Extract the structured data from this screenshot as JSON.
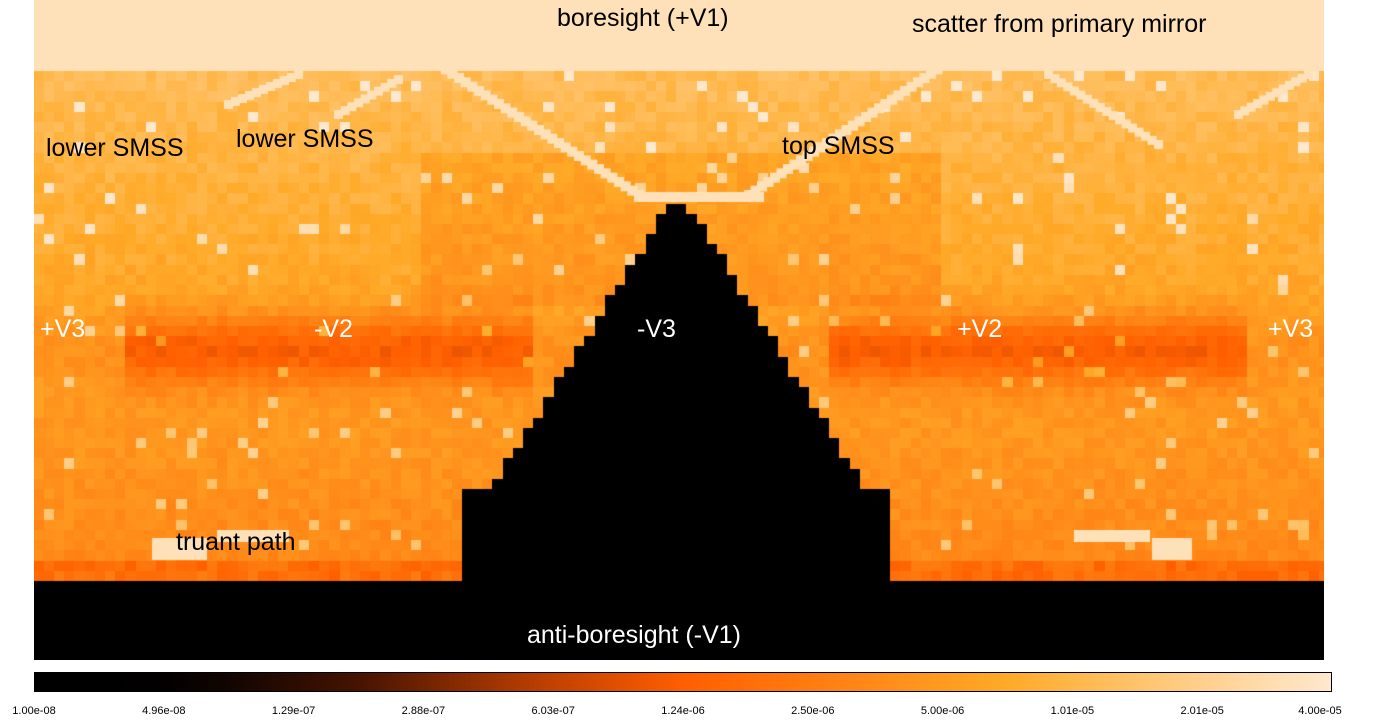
{
  "chart_data": {
    "type": "heatmap",
    "title": "",
    "xlabel": "",
    "ylabel": "",
    "scale": "log",
    "colormap": "afmhot",
    "colorbar": {
      "vmin": 1e-08,
      "vmax": 4e-05,
      "orientation": "horizontal",
      "tick_labels": [
        "1.00e-08",
        "4.96e-08",
        "1.29e-07",
        "2.88e-07",
        "6.03e-07",
        "1.24e-06",
        "2.50e-06",
        "5.00e-06",
        "1.01e-05",
        "2.01e-05",
        "4.00e-05"
      ]
    },
    "annotations": [
      {
        "key": "boresight",
        "text": "boresight (+V1)",
        "color": "#000000"
      },
      {
        "key": "scatter",
        "text": "scatter from primary mirror",
        "color": "#000000"
      },
      {
        "key": "lower_smss_1",
        "text": "lower SMSS",
        "color": "#000000"
      },
      {
        "key": "lower_smss_2",
        "text": "lower SMSS",
        "color": "#000000"
      },
      {
        "key": "top_smss",
        "text": "top SMSS",
        "color": "#000000"
      },
      {
        "key": "pv3_left",
        "text": "+V3",
        "color": "#ffffff"
      },
      {
        "key": "mv2",
        "text": "-V2",
        "color": "#ffffff"
      },
      {
        "key": "mv3",
        "text": "-V3",
        "color": "#ffffff"
      },
      {
        "key": "pv2",
        "text": "+V2",
        "color": "#ffffff"
      },
      {
        "key": "pv3_right",
        "text": "+V3",
        "color": "#ffffff"
      },
      {
        "key": "truant",
        "text": "truant path",
        "color": "#000000"
      },
      {
        "key": "anti",
        "text": "anti-boresight (-V1)",
        "color": "#ffffff"
      }
    ],
    "colors": {
      "background": "#000000",
      "low": "#000000",
      "mid": "#ff5a00",
      "high": "#ffe7c8"
    }
  }
}
